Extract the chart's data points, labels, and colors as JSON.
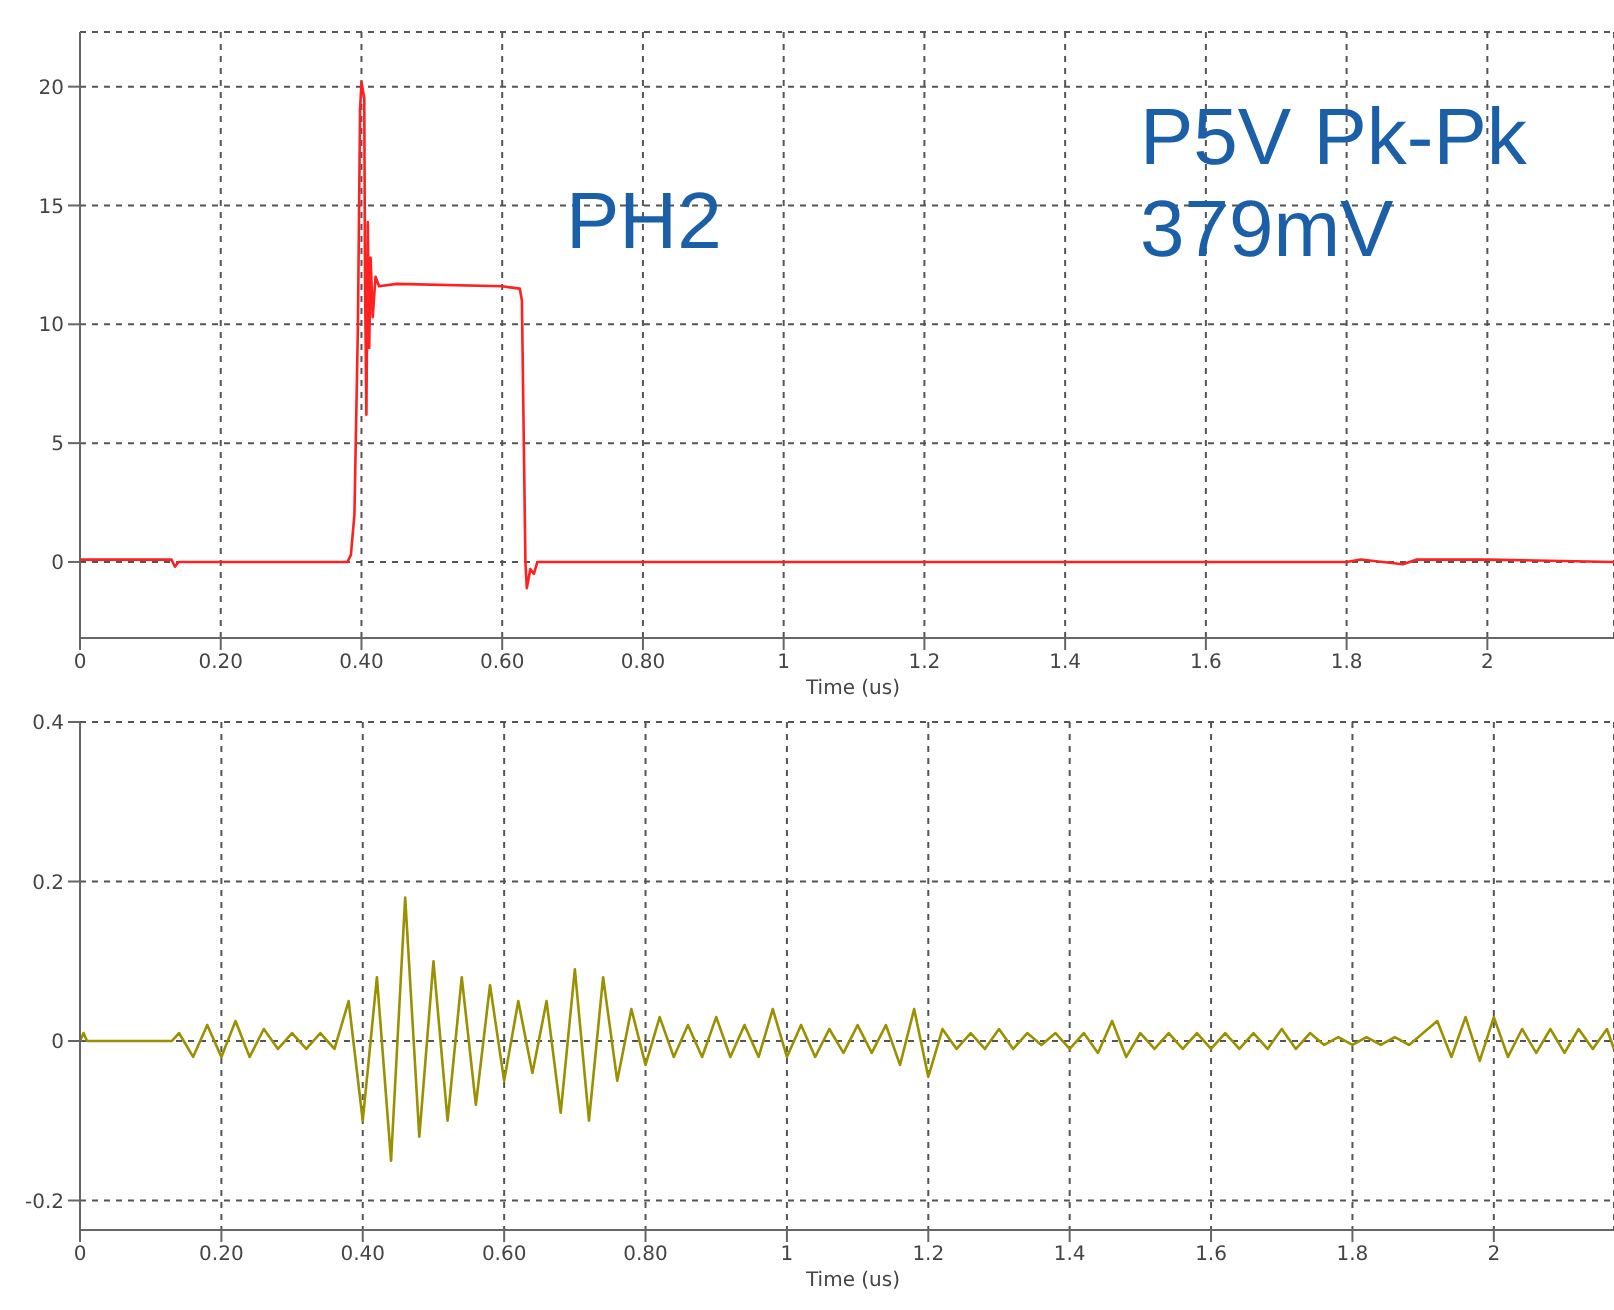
{
  "chart_data": [
    {
      "type": "line",
      "xlabel": "Time (us)",
      "annotations": [
        "PH2",
        "P5V Pk-Pk 379mV"
      ],
      "grid": true,
      "line_style": "solid",
      "xlim": [
        0,
        2.18
      ],
      "xticks": [
        0,
        {
          "value": 0.2,
          "label": "0.20"
        },
        {
          "value": 0.4,
          "label": "0.40"
        },
        {
          "value": 0.6,
          "label": "0.60"
        },
        {
          "value": 0.8,
          "label": "0.80"
        },
        1,
        1.2,
        1.4,
        1.6,
        1.8,
        2
      ],
      "ylim": [
        -3.2,
        22.3
      ],
      "yticks": [
        0,
        5,
        10,
        15,
        20
      ],
      "series": [
        {
          "color": "#ff2020",
          "x": [
            0,
            0.13,
            0.135,
            0.14,
            0.38,
            0.385,
            0.39,
            0.395,
            0.398,
            0.4,
            0.404,
            0.405,
            0.407,
            0.409,
            0.411,
            0.413,
            0.416,
            0.42,
            0.425,
            0.45,
            0.6,
            0.625,
            0.628,
            0.633,
            0.635,
            0.64,
            0.645,
            0.65,
            0.66,
            1,
            1.8,
            1.82,
            1.88,
            1.9,
            2,
            2.18
          ],
          "values": [
            0.1,
            0.1,
            -0.2,
            0,
            0,
            0.3,
            2,
            10,
            19,
            20.2,
            19.5,
            12,
            6.2,
            14.3,
            9,
            12.8,
            10.3,
            12,
            11.6,
            11.7,
            11.6,
            11.5,
            11,
            0,
            -1.1,
            -0.3,
            -0.5,
            0,
            0,
            0,
            0,
            0.1,
            -0.1,
            0.1,
            0.1,
            0
          ]
        }
      ]
    },
    {
      "type": "line",
      "xlabel": "Time (us)",
      "grid": true,
      "line_style": "solid",
      "xlim": [
        0,
        2.17
      ],
      "xticks": [
        0,
        {
          "value": 0.2,
          "label": "0.20"
        },
        {
          "value": 0.4,
          "label": "0.40"
        },
        {
          "value": 0.6,
          "label": "0.60"
        },
        {
          "value": 0.8,
          "label": "0.80"
        },
        1,
        1.2,
        1.4,
        1.6,
        1.8,
        2
      ],
      "ylim": [
        -0.237,
        0.4
      ],
      "yticks": [
        -0.2,
        0,
        0.2,
        0.4
      ],
      "series": [
        {
          "color": "#9a9000",
          "x": [
            0,
            0.005,
            0.01,
            0.13,
            0.14,
            0.16,
            0.18,
            0.2,
            0.22,
            0.24,
            0.26,
            0.28,
            0.3,
            0.32,
            0.34,
            0.36,
            0.38,
            0.4,
            0.42,
            0.44,
            0.46,
            0.48,
            0.5,
            0.52,
            0.54,
            0.56,
            0.58,
            0.6,
            0.62,
            0.64,
            0.66,
            0.68,
            0.7,
            0.72,
            0.74,
            0.76,
            0.78,
            0.8,
            0.82,
            0.84,
            0.86,
            0.88,
            0.9,
            0.92,
            0.94,
            0.96,
            0.98,
            1,
            1.02,
            1.04,
            1.06,
            1.08,
            1.1,
            1.12,
            1.14,
            1.16,
            1.18,
            1.2,
            1.22,
            1.24,
            1.26,
            1.28,
            1.3,
            1.32,
            1.34,
            1.36,
            1.38,
            1.4,
            1.42,
            1.44,
            1.46,
            1.48,
            1.5,
            1.52,
            1.54,
            1.56,
            1.58,
            1.6,
            1.62,
            1.64,
            1.66,
            1.68,
            1.7,
            1.72,
            1.74,
            1.76,
            1.78,
            1.8,
            1.82,
            1.84,
            1.86,
            1.88,
            1.9,
            1.92,
            1.94,
            1.96,
            1.98,
            2,
            2.02,
            2.04,
            2.06,
            2.08,
            2.1,
            2.12,
            2.14,
            2.16,
            2.17
          ],
          "values": [
            0,
            0.01,
            0,
            0,
            0.01,
            -0.02,
            0.02,
            -0.02,
            0.025,
            -0.02,
            0.015,
            -0.01,
            0.01,
            -0.01,
            0.01,
            -0.01,
            0.05,
            -0.1,
            0.08,
            -0.15,
            0.18,
            -0.12,
            0.1,
            -0.1,
            0.08,
            -0.08,
            0.07,
            -0.05,
            0.05,
            -0.04,
            0.05,
            -0.09,
            0.09,
            -0.1,
            0.08,
            -0.05,
            0.04,
            -0.03,
            0.03,
            -0.02,
            0.02,
            -0.02,
            0.03,
            -0.02,
            0.02,
            -0.02,
            0.04,
            -0.02,
            0.02,
            -0.02,
            0.015,
            -0.015,
            0.02,
            -0.015,
            0.02,
            -0.03,
            0.04,
            -0.045,
            0.015,
            -0.01,
            0.01,
            -0.01,
            0.015,
            -0.01,
            0.01,
            -0.005,
            0.01,
            -0.01,
            0.01,
            -0.015,
            0.025,
            -0.02,
            0.01,
            -0.01,
            0.01,
            -0.01,
            0.01,
            -0.01,
            0.01,
            -0.01,
            0.01,
            -0.01,
            0.015,
            -0.01,
            0.01,
            -0.005,
            0.005,
            -0.005,
            0.005,
            -0.005,
            0.005,
            -0.005,
            0.01,
            0.025,
            -0.02,
            0.03,
            -0.025,
            0.03,
            -0.02,
            0.015,
            -0.015,
            0.015,
            -0.015,
            0.015,
            -0.01,
            0.015,
            -0.01
          ]
        }
      ]
    }
  ]
}
